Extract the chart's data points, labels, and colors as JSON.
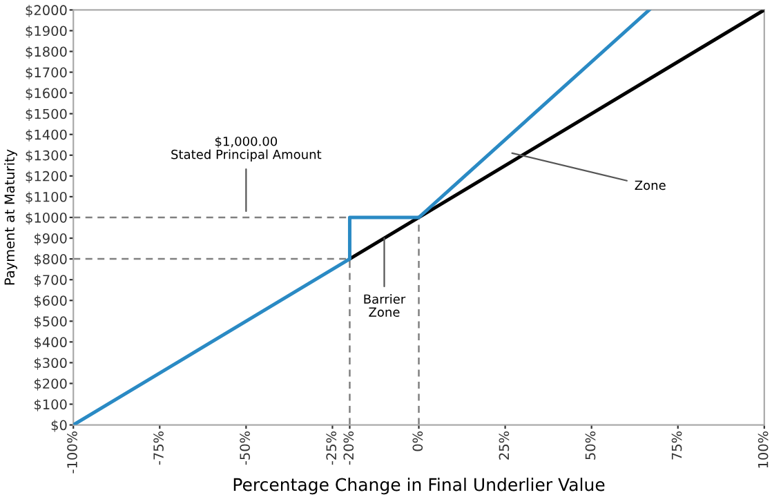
{
  "chart_data": {
    "type": "line",
    "xlabel": "Percentage Change in Final Underlier Value",
    "ylabel": "Payment at Maturity",
    "series": [
      {
        "color": "#808080",
        "line_style": "dashed",
        "x": [
          -100,
          0
        ],
        "values": [
          1000,
          1000
        ]
      },
      {
        "color": "#808080",
        "line_style": "dashed",
        "x": [
          -100,
          -20
        ],
        "values": [
          800,
          800
        ]
      },
      {
        "color": "#808080",
        "line_style": "dashed",
        "x": [
          -20,
          -20
        ],
        "values": [
          0,
          1000
        ]
      },
      {
        "color": "#808080",
        "line_style": "dashed",
        "x": [
          0,
          0
        ],
        "values": [
          0,
          1000
        ]
      },
      {
        "color": "#000000",
        "line_style": "solid",
        "x": [
          -20,
          100
        ],
        "values": [
          800,
          2000
        ]
      },
      {
        "color": "#2a8ac4",
        "line_style": "solid",
        "x": [
          -100,
          -20,
          -20,
          0,
          66.7
        ],
        "values": [
          0,
          800,
          1000,
          1000,
          2000
        ]
      }
    ],
    "xlim": [
      -100,
      100
    ],
    "ylim": [
      0,
      2000
    ],
    "xticks": [
      {
        "value": -100,
        "label": "-100%"
      },
      {
        "value": -75,
        "label": "-75%"
      },
      {
        "value": -50,
        "label": "-50%"
      },
      {
        "value": -25,
        "label": "-25%"
      },
      {
        "value": -20,
        "label": "-20%"
      },
      {
        "value": 0,
        "label": "0%"
      },
      {
        "value": 25,
        "label": "25%"
      },
      {
        "value": 50,
        "label": "50%"
      },
      {
        "value": 75,
        "label": "75%"
      },
      {
        "value": 100,
        "label": "100%"
      }
    ],
    "yticks": [
      {
        "value": 0,
        "label": "$0"
      },
      {
        "value": 100,
        "label": "$100"
      },
      {
        "value": 200,
        "label": "$200"
      },
      {
        "value": 300,
        "label": "$300"
      },
      {
        "value": 400,
        "label": "$400"
      },
      {
        "value": 500,
        "label": "$500"
      },
      {
        "value": 600,
        "label": "$600"
      },
      {
        "value": 700,
        "label": "$700"
      },
      {
        "value": 800,
        "label": "$800"
      },
      {
        "value": 900,
        "label": "$900"
      },
      {
        "value": 1000,
        "label": "$1000"
      },
      {
        "value": 1100,
        "label": "$1100"
      },
      {
        "value": 1200,
        "label": "$1200"
      },
      {
        "value": 1300,
        "label": "$1300"
      },
      {
        "value": 1400,
        "label": "$1400"
      },
      {
        "value": 1500,
        "label": "$1500"
      },
      {
        "value": 1600,
        "label": "$1600"
      },
      {
        "value": 1700,
        "label": "$1700"
      },
      {
        "value": 1800,
        "label": "$1800"
      },
      {
        "value": 1900,
        "label": "$1900"
      },
      {
        "value": 2000,
        "label": "$2000"
      }
    ],
    "grid": false,
    "legend": false,
    "marker": "none",
    "annotations": [
      {
        "text": "$1,000.00\nStated Principal Amount",
        "x": -50,
        "y": 1030
      },
      {
        "text": "Barrier\nZone",
        "x": -10,
        "y": 900
      },
      {
        "text": "Zone",
        "x": 27,
        "y": 1310
      }
    ]
  }
}
